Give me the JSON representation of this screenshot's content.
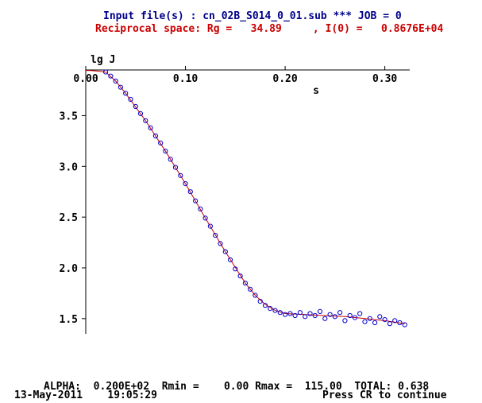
{
  "header": {
    "line1": "Input file(s) : cn_02B_S014_0_01.sub *** JOB = 0",
    "line2": "Reciprocal space: Rg =   34.89     , I(0) =   0.8676E+04"
  },
  "footer": {
    "params": "ALPHA:  0.200E+02  Rmin =    0.00 Rmax =  115.00  TOTAL: 0.638",
    "datetime": "13-May-2011    19:05:29",
    "prompt": "Press CR to continue"
  },
  "colors": {
    "title1": "#00008b",
    "title2": "#cc0000",
    "points": "#0000cc",
    "fit": "#cc0000"
  },
  "chart_data": {
    "type": "scatter",
    "xlabel": "s",
    "ylabel": "lg J",
    "xlim": [
      0.0,
      0.325
    ],
    "ylim": [
      1.35,
      3.95
    ],
    "x_ticks": [
      0.0,
      0.1,
      0.2,
      0.3
    ],
    "x_tick_labels": [
      "0.00",
      "0.10",
      "0.20",
      "0.30"
    ],
    "y_ticks": [
      3.5,
      3.0,
      2.5,
      2.0,
      1.5
    ],
    "y_tick_labels": [
      "3.5",
      "3.0",
      "2.5",
      "2.0",
      "1.5"
    ],
    "grid": false,
    "series": [
      {
        "kind": "points",
        "x": [
          0.02,
          0.025,
          0.03,
          0.035,
          0.04,
          0.045,
          0.05,
          0.055,
          0.06,
          0.065,
          0.07,
          0.075,
          0.08,
          0.085,
          0.09,
          0.095,
          0.1,
          0.105,
          0.11,
          0.115,
          0.12,
          0.125,
          0.13,
          0.135,
          0.14,
          0.145,
          0.15,
          0.155,
          0.16,
          0.165,
          0.17,
          0.175,
          0.18,
          0.185,
          0.19,
          0.195,
          0.2,
          0.205,
          0.21,
          0.215,
          0.22,
          0.225,
          0.23,
          0.235,
          0.24,
          0.245,
          0.25,
          0.255,
          0.26,
          0.265,
          0.27,
          0.275,
          0.28,
          0.285,
          0.29,
          0.295,
          0.3,
          0.305,
          0.31,
          0.315,
          0.32
        ],
        "y": [
          3.93,
          3.89,
          3.84,
          3.78,
          3.72,
          3.66,
          3.59,
          3.52,
          3.45,
          3.38,
          3.3,
          3.23,
          3.15,
          3.07,
          2.99,
          2.91,
          2.83,
          2.75,
          2.66,
          2.58,
          2.49,
          2.41,
          2.32,
          2.24,
          2.16,
          2.08,
          1.99,
          1.92,
          1.85,
          1.79,
          1.73,
          1.67,
          1.63,
          1.6,
          1.58,
          1.56,
          1.54,
          1.55,
          1.53,
          1.56,
          1.52,
          1.55,
          1.53,
          1.57,
          1.5,
          1.54,
          1.52,
          1.56,
          1.48,
          1.53,
          1.51,
          1.55,
          1.47,
          1.5,
          1.46,
          1.52,
          1.49,
          1.45,
          1.48,
          1.46,
          1.44
        ]
      },
      {
        "kind": "fit",
        "x": [
          0.0,
          0.005,
          0.01,
          0.015,
          0.02,
          0.03,
          0.04,
          0.06,
          0.08,
          0.1,
          0.12,
          0.14,
          0.16,
          0.17,
          0.18,
          0.19,
          0.2,
          0.22,
          0.24,
          0.26,
          0.28,
          0.3,
          0.32
        ],
        "y": [
          3.945,
          3.944,
          3.94,
          3.935,
          3.928,
          3.84,
          3.72,
          3.45,
          3.15,
          2.83,
          2.49,
          2.16,
          1.85,
          1.73,
          1.64,
          1.58,
          1.55,
          1.54,
          1.53,
          1.52,
          1.5,
          1.48,
          1.45
        ]
      }
    ]
  }
}
